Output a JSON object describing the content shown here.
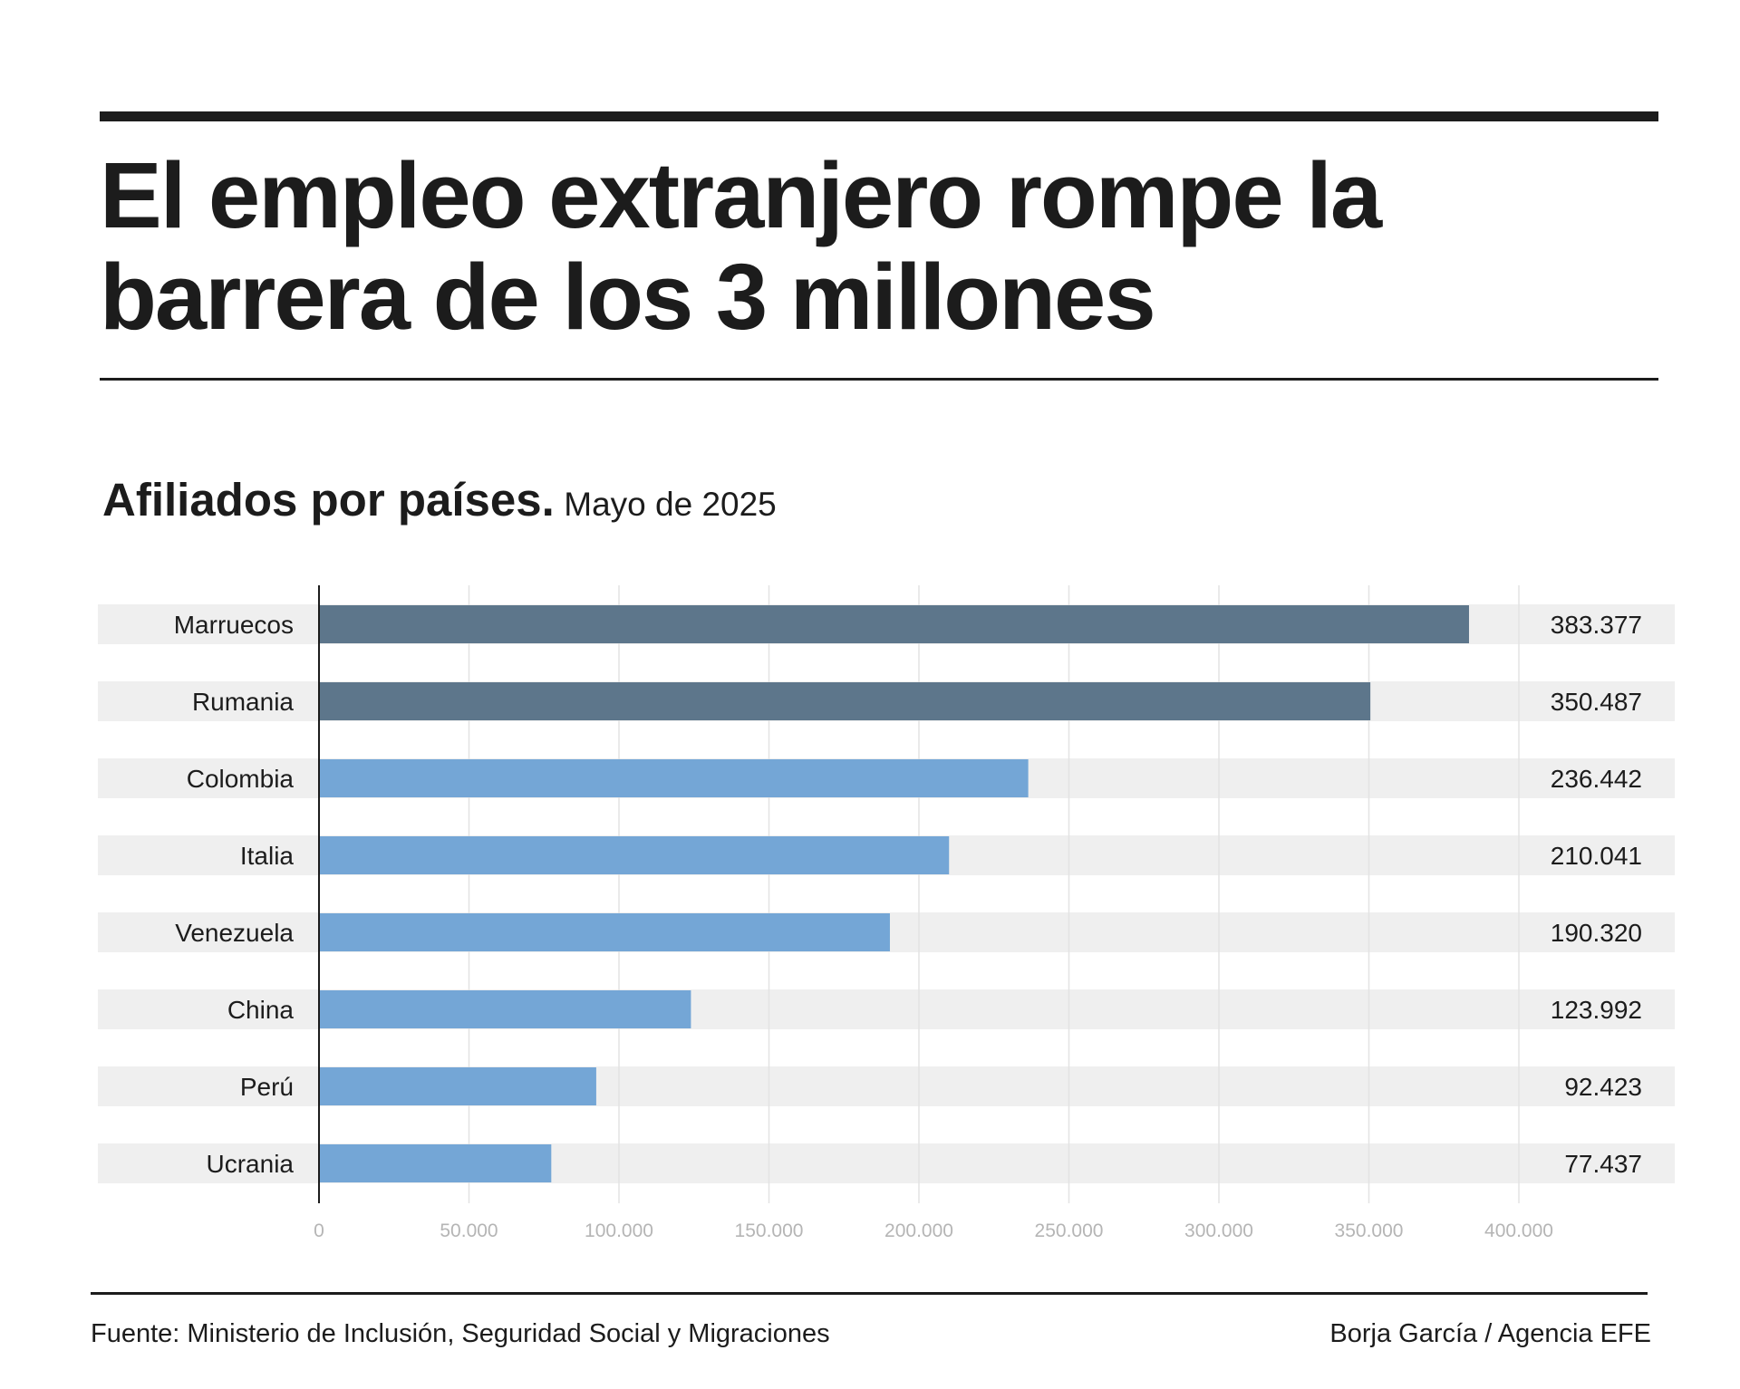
{
  "header": {
    "title": "El empleo extranjero rompe la barrera de los 3 millones"
  },
  "chart_data": {
    "type": "bar",
    "orientation": "horizontal",
    "title": "Afiliados por países.",
    "subtitle": "Mayo de 2025",
    "categories": [
      "Marruecos",
      "Rumania",
      "Colombia",
      "Italia",
      "Venezuela",
      "China",
      "Perú",
      "Ucrania"
    ],
    "values": [
      383377,
      350487,
      236442,
      210041,
      190320,
      123992,
      92423,
      77437
    ],
    "value_labels": [
      "383.377",
      "350.487",
      "236.442",
      "210.041",
      "190.320",
      "123.992",
      "92.423",
      "77.437"
    ],
    "xlim": [
      0,
      400000
    ],
    "x_ticks": [
      0,
      50000,
      100000,
      150000,
      200000,
      250000,
      300000,
      350000,
      400000
    ],
    "x_tick_labels": [
      "0",
      "50.000",
      "100.000",
      "150.000",
      "200.000",
      "250.000",
      "300.000",
      "350.000",
      "400.000"
    ],
    "xlabel": "",
    "ylabel": "",
    "grid": true,
    "colors": {
      "highlight": "#5d768b",
      "default": "#74a6d6",
      "row_band": "#efefef",
      "grid": "#e3e3e3",
      "tick_text": "#b5b5b5"
    },
    "highlighted_categories": [
      "Marruecos",
      "Rumania"
    ]
  },
  "footer": {
    "source": "Fuente: Ministerio de Inclusión, Seguridad Social y Migraciones",
    "credit": "Borja García / Agencia EFE"
  }
}
